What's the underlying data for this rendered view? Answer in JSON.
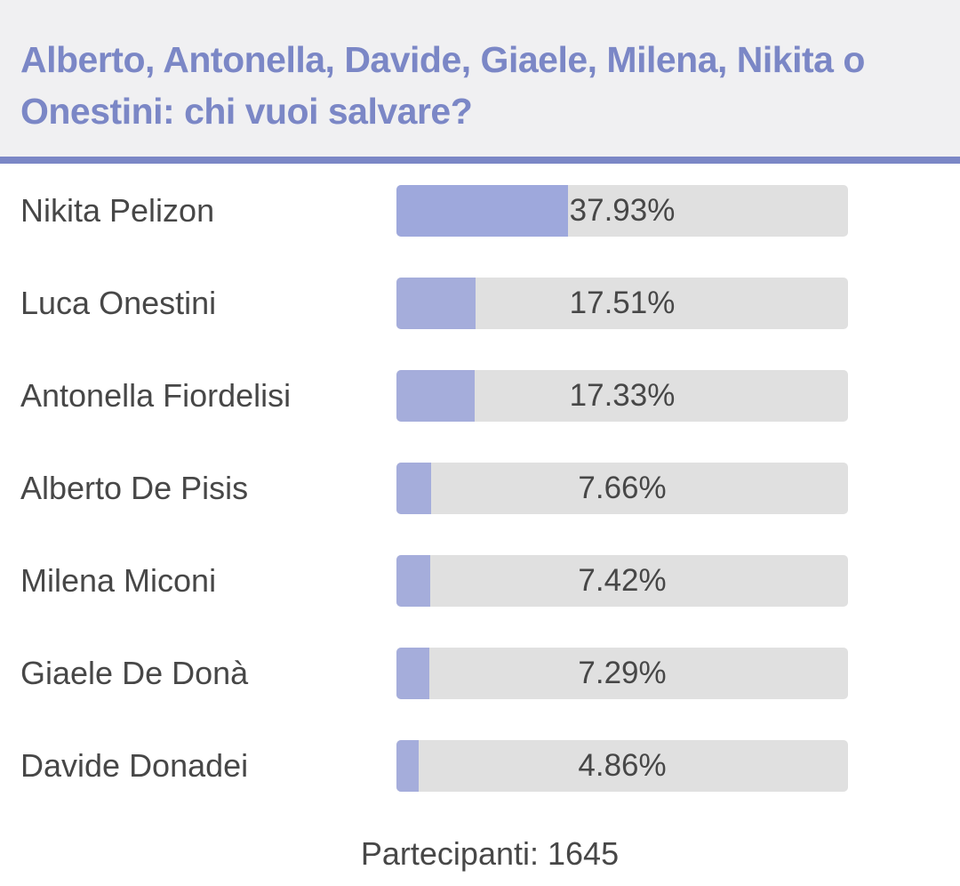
{
  "poll": {
    "title": "Alberto, Antonella, Davide, Giaele, Milena, Nikita o Onestini: chi vuoi salvare?",
    "accent_color": "#7b87c6",
    "bar_fill_color": "#a5addb",
    "bar_track_color": "#e0e0e0",
    "options": [
      {
        "label": "Nikita Pelizon",
        "percent_text": "37.93%",
        "value": 37.93,
        "leader": true
      },
      {
        "label": "Luca Onestini",
        "percent_text": "17.51%",
        "value": 17.51
      },
      {
        "label": "Antonella Fiordelisi",
        "percent_text": "17.33%",
        "value": 17.33
      },
      {
        "label": "Alberto De Pisis",
        "percent_text": "7.66%",
        "value": 7.66
      },
      {
        "label": "Milena Miconi",
        "percent_text": "7.42%",
        "value": 7.42
      },
      {
        "label": "Giaele De Donà",
        "percent_text": "7.29%",
        "value": 7.29
      },
      {
        "label": "Davide Donadei",
        "percent_text": "4.86%",
        "value": 4.86
      }
    ],
    "participants_text": "Partecipanti: 1645"
  }
}
